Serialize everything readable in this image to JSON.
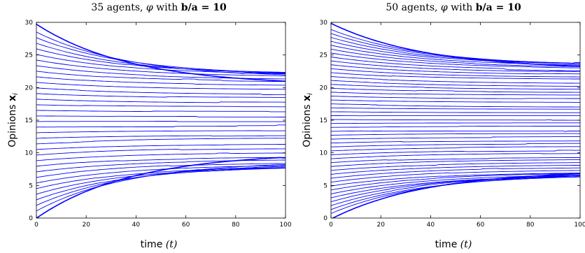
{
  "chart_data": [
    {
      "type": "line",
      "title_parts": [
        "35",
        " agents, ",
        "φ",
        " with ",
        "b/a = 10"
      ],
      "xlabel_parts": [
        "time ",
        "(t)"
      ],
      "ylabel_parts": [
        "Opinions ",
        "x",
        "i"
      ],
      "xlim": [
        0,
        100
      ],
      "ylim": [
        0,
        30
      ],
      "xticks": [
        "0",
        "20",
        "40",
        "60",
        "80",
        "100"
      ],
      "yticks": [
        "0",
        "5",
        "10",
        "15",
        "20",
        "25",
        "30"
      ],
      "line_color": "#0000ff",
      "grid": false,
      "legend": "none",
      "n_agents": 35,
      "final_range": [
        10.2,
        20.2
      ]
    },
    {
      "type": "line",
      "title_parts": [
        "50",
        " agents, ",
        "φ",
        " with ",
        "b/a = 10"
      ],
      "xlabel_parts": [
        "time ",
        "(t)"
      ],
      "ylabel_parts": [
        "Opinions ",
        "x",
        "i"
      ],
      "xlim": [
        0,
        100
      ],
      "ylim": [
        0,
        30
      ],
      "xticks": [
        "0",
        "20",
        "40",
        "60",
        "80",
        "100"
      ],
      "yticks": [
        "0",
        "5",
        "10",
        "15",
        "20",
        "25",
        "30"
      ],
      "line_color": "#0000ff",
      "grid": false,
      "legend": "none",
      "n_agents": 50,
      "final_range": [
        6.8,
        22.4
      ]
    }
  ]
}
